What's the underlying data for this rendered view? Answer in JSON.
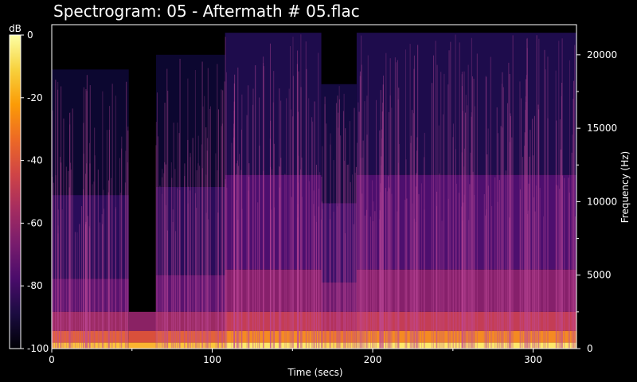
{
  "title": "Spectrogram: 05 - Aftermath # 05.flac",
  "colorbar": {
    "unit": "dB",
    "ticks": [
      "0",
      "-20",
      "-40",
      "-60",
      "-80",
      "-100"
    ],
    "colormap": [
      "#000004",
      "#1b0c41",
      "#4a0c6b",
      "#781c6d",
      "#a52c60",
      "#cf4446",
      "#ed6925",
      "#fb9b06",
      "#f7d13d",
      "#fcffa4"
    ]
  },
  "chart_data": {
    "type": "heatmap",
    "title": "Spectrogram: 05 - Aftermath # 05.flac",
    "xlabel": "Time (secs)",
    "ylabel": "Frequency (Hz)",
    "xlim": [
      0,
      327
    ],
    "ylim": [
      0,
      22050
    ],
    "x_ticks": [
      0,
      100,
      200,
      300
    ],
    "y_ticks": [
      0,
      5000,
      10000,
      15000,
      20000
    ],
    "colorbar_label": "dB",
    "colorbar_range": [
      -100,
      0
    ],
    "segments": [
      {
        "start": 0,
        "end": 48,
        "max_freq_hz": 19000,
        "level": "quiet"
      },
      {
        "start": 48,
        "end": 65,
        "max_freq_hz": 2500,
        "level": "very quiet"
      },
      {
        "start": 65,
        "end": 108,
        "max_freq_hz": 20000,
        "level": "quiet"
      },
      {
        "start": 108,
        "end": 168,
        "max_freq_hz": 21500,
        "level": "loud"
      },
      {
        "start": 168,
        "end": 190,
        "max_freq_hz": 18000,
        "level": "medium"
      },
      {
        "start": 190,
        "end": 327,
        "max_freq_hz": 21500,
        "level": "loud"
      }
    ]
  }
}
